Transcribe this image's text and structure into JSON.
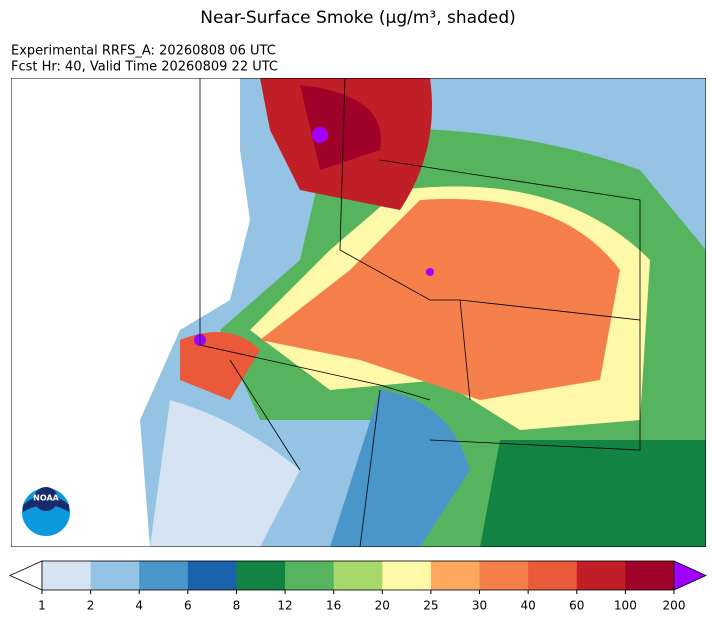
{
  "header": {
    "title": "Near-Surface Smoke (μg/m³, shaded)",
    "lines": [
      "Experimental RRFS_A: 20260808 06 UTC",
      "Fcst Hr: 40, Valid Time 20260809 22 UTC"
    ]
  },
  "logo": "NOAA",
  "colorbar": {
    "ticks": [
      1,
      2,
      4,
      6,
      8,
      12,
      16,
      20,
      25,
      30,
      40,
      60,
      100,
      200
    ],
    "colors": [
      "#d5e3f2",
      "#94c3e3",
      "#4a96ca",
      "#1a62ab",
      "#138343",
      "#57b45e",
      "#a6d86b",
      "#fef8a9",
      "#fda85d",
      "#f57f4b",
      "#e9593a",
      "#c11f28",
      "#a00229"
    ],
    "under_color": "#ffffff",
    "over_color": "#a000ff"
  }
}
